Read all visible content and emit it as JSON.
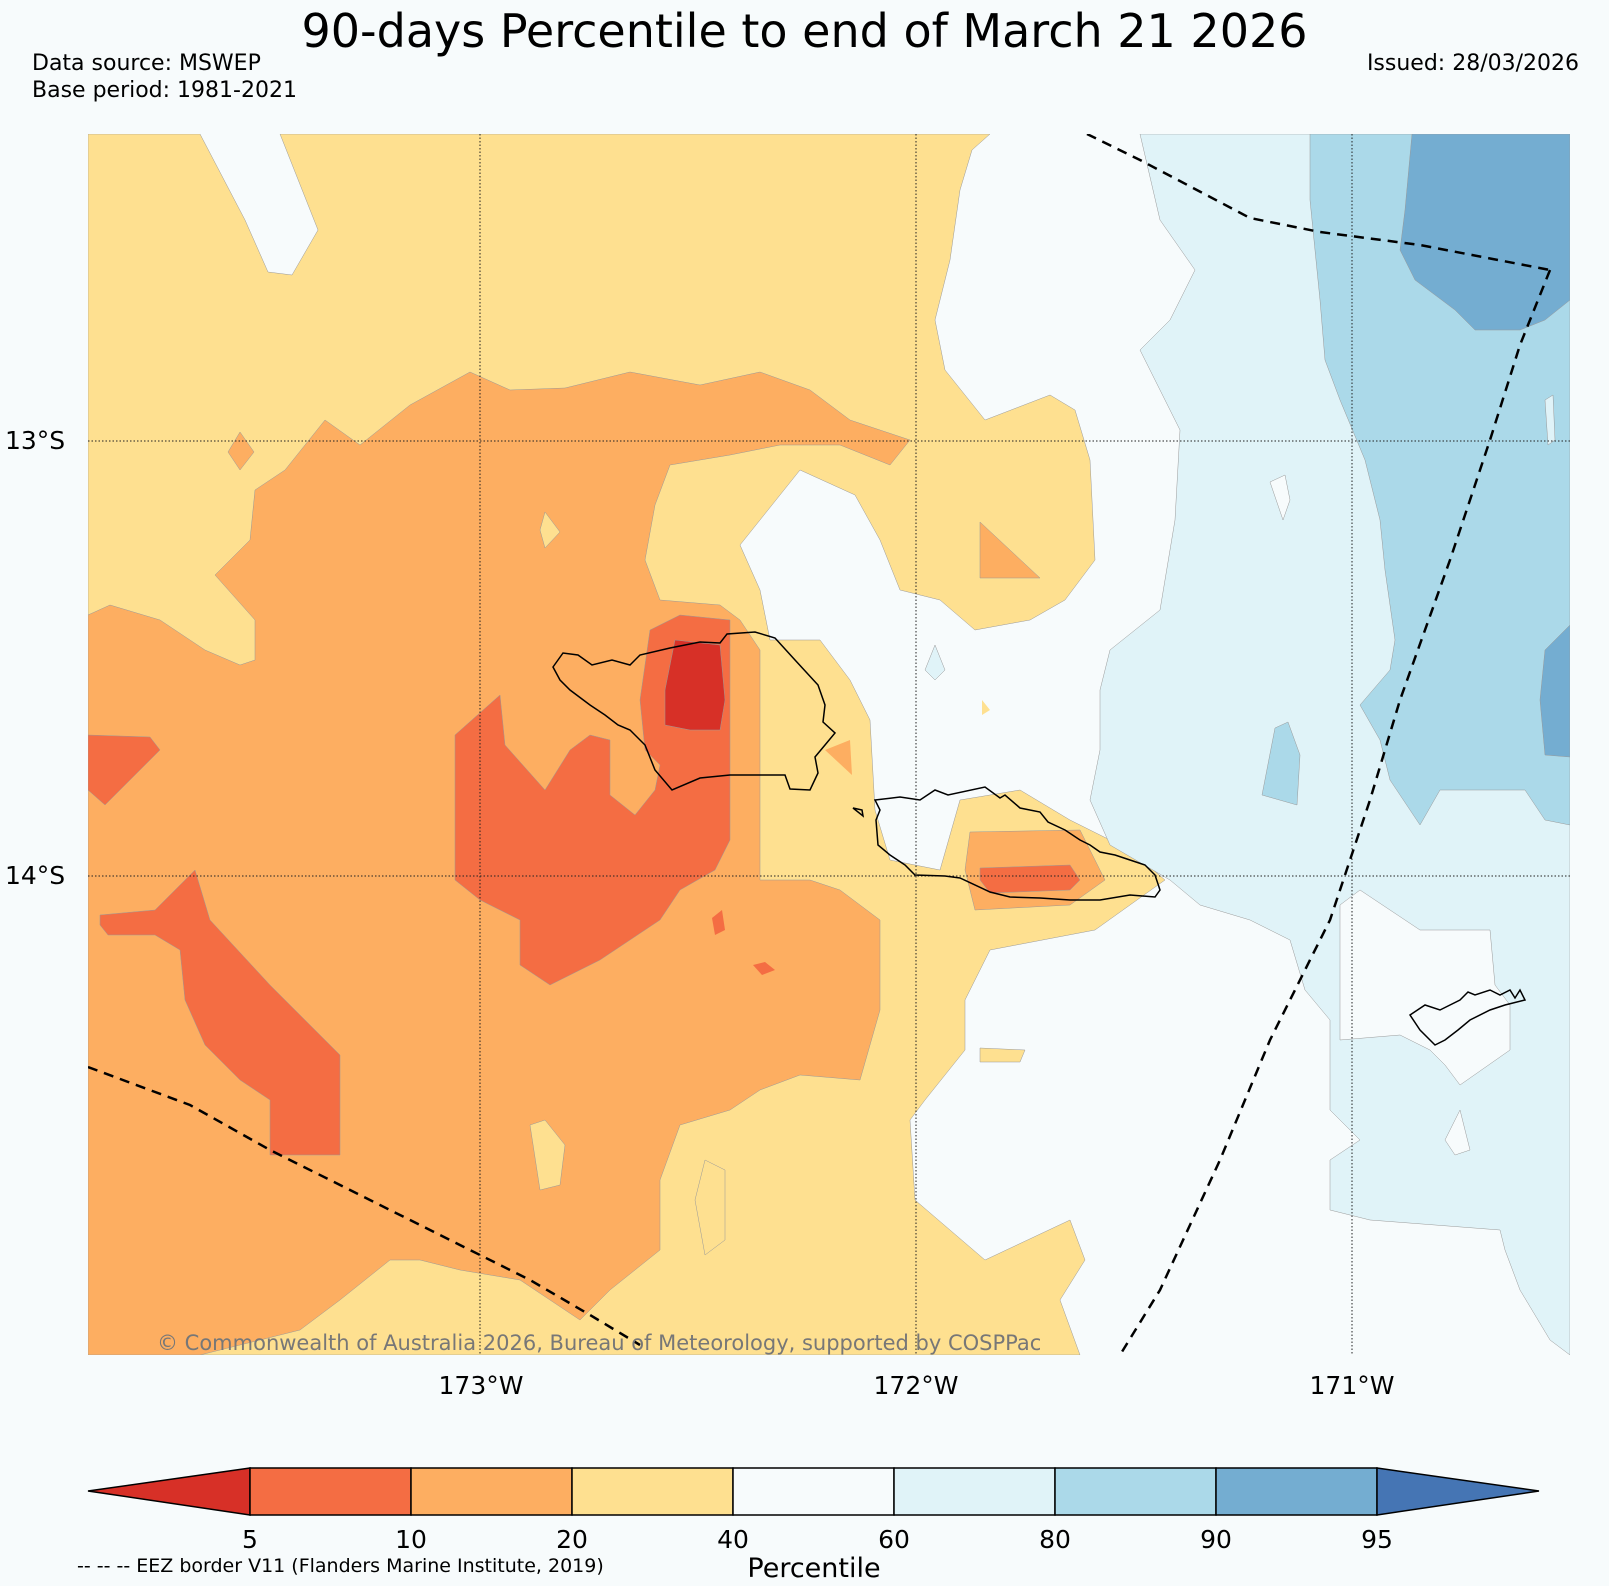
{
  "title": "90-days Percentile to end of March 21 2026",
  "data_source": "Data source: MSWEP",
  "base_period": "Base period: 1981-2021",
  "issued": "Issued: 28/03/2026",
  "axes": {
    "lat_labels": [
      "13°S",
      "14°S"
    ],
    "lon_labels": [
      "173°W",
      "172°W",
      "171°W"
    ]
  },
  "copyright": "© Commonwealth of Australia 2026, Bureau of Meteorology, supported by COSPPac",
  "legend": {
    "title": "Percentile",
    "ticks": [
      "5",
      "10",
      "20",
      "40",
      "60",
      "80",
      "90",
      "95"
    ],
    "eez_note": "-- -- -- EEZ border V11 (Flanders Marine Institute, 2019)",
    "colors": [
      "#d73027",
      "#f46d43",
      "#fdae61",
      "#fee090",
      "#f7fbfc",
      "#e0f3f8",
      "#abd9e9",
      "#74add1",
      "#4575b4"
    ]
  }
}
